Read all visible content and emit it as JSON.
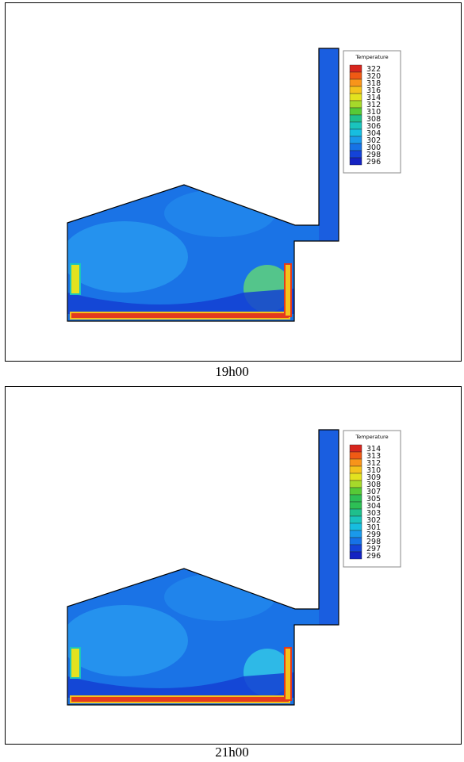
{
  "figures": [
    {
      "caption": "19h00",
      "legend": {
        "title": "Temperature",
        "labels": [
          "322",
          "320",
          "318",
          "316",
          "314",
          "312",
          "310",
          "308",
          "306",
          "304",
          "302",
          "300",
          "298",
          "296"
        ]
      }
    },
    {
      "caption": "21h00",
      "legend": {
        "title": "Temperature",
        "labels": [
          "314",
          "313",
          "312",
          "310",
          "309",
          "308",
          "307",
          "305",
          "304",
          "303",
          "302",
          "301",
          "299",
          "298",
          "297",
          "296"
        ]
      }
    }
  ],
  "colors": {
    "scale": [
      "#d7261e",
      "#f05a14",
      "#f8941a",
      "#f4c21c",
      "#e3e21f",
      "#a6d92a",
      "#56c936",
      "#2dbf55",
      "#1fbf8c",
      "#1ac4bd",
      "#17bde0",
      "#1a99ea",
      "#1672e6",
      "#1443d8",
      "#1423c2"
    ],
    "background_flow": "#1a73e6",
    "heater": "#e33a1e"
  }
}
